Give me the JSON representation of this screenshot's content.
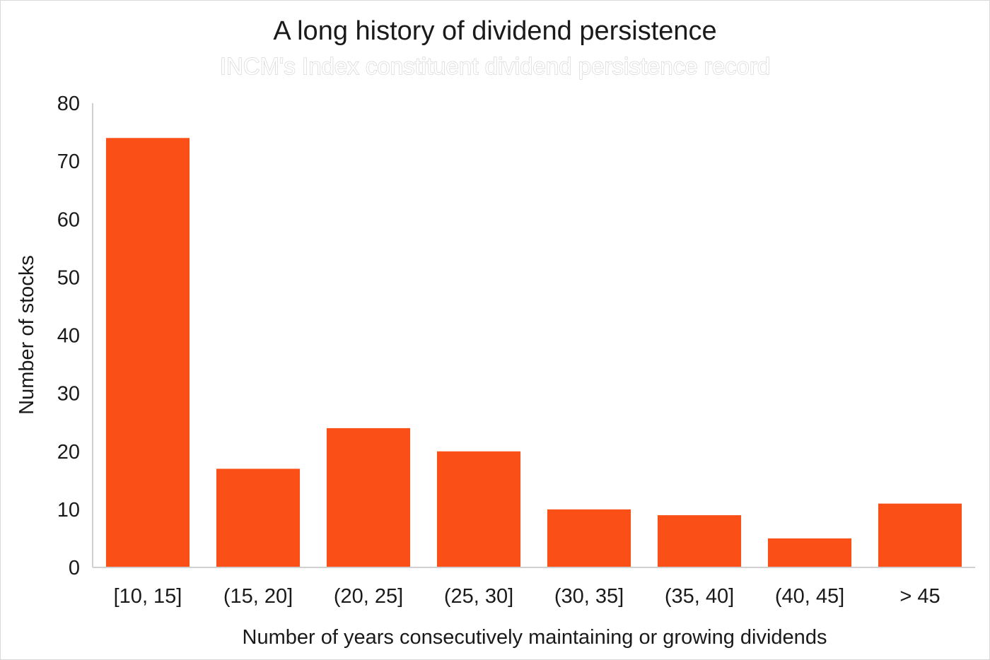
{
  "chart_data": {
    "type": "bar",
    "title": "A long history of dividend persistence",
    "subtitle": "INCM's Index constituent dividend persistence record",
    "xlabel": "Number of years consecutively maintaining or growing dividends",
    "ylabel": "Number of stocks",
    "categories": [
      "[10, 15]",
      "(15, 20]",
      "(20, 25]",
      "(25, 30]",
      "(30, 35]",
      "(35, 40]",
      "(40, 45]",
      "> 45"
    ],
    "values": [
      74,
      17,
      24,
      20,
      10,
      9,
      5,
      11
    ],
    "ylim": [
      0,
      80
    ],
    "yticks": [
      "0",
      "10",
      "20",
      "30",
      "40",
      "50",
      "60",
      "70",
      "80"
    ],
    "grid": false,
    "legend": "none",
    "bar_color": "#fa4f17",
    "axis_color": "#d0d0d0"
  }
}
